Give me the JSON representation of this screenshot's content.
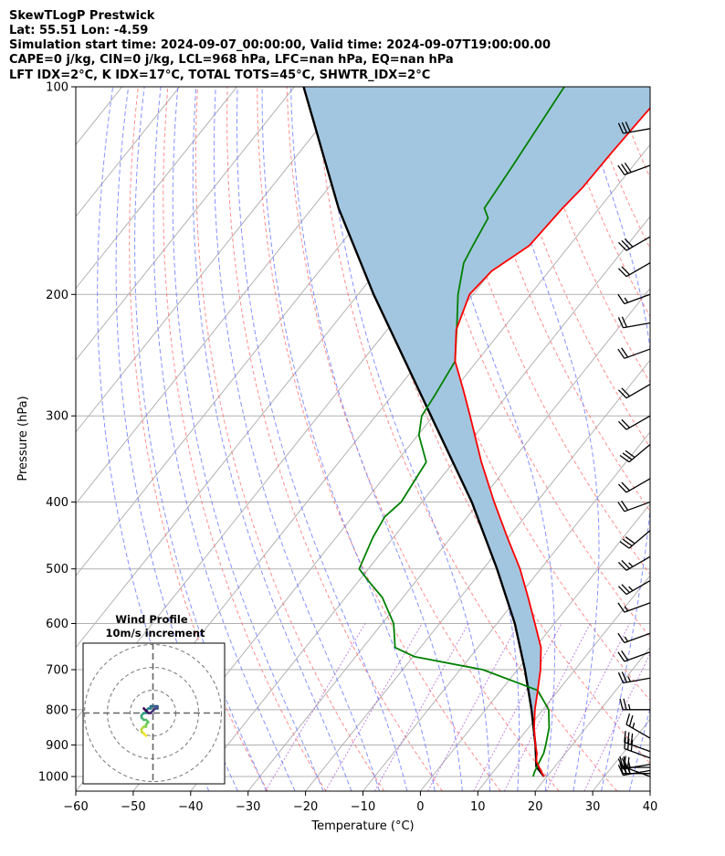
{
  "header": {
    "lines": [
      "SkewTLogP Prestwick",
      "Lat: 55.51   Lon: -4.59",
      "Simulation start time: 2024-09-07_00:00:00, Valid time: 2024-09-07T19:00:00.00",
      "CAPE=0 j/kg, CIN=0 j/kg, LCL=968 hPa, LFC=nan hPa, EQ=nan hPa",
      "LFT IDX=2°C, K IDX=17°C, TOTAL TOTS=45°C, SHWTR_IDX=2°C"
    ]
  },
  "chart_data": [
    {
      "type": "line",
      "subtype": "skew-T log-P",
      "xlabel": "Temperature (°C)",
      "ylabel": "Pressure (hPa)",
      "xlim": [
        -60,
        40
      ],
      "ylim": [
        1050,
        100
      ],
      "y_scale": "log",
      "x_ticks": [
        -60,
        -50,
        -40,
        -30,
        -20,
        -10,
        0,
        10,
        20,
        30,
        40
      ],
      "x_tick_labels": [
        "−60",
        "−50",
        "−40",
        "−30",
        "−20",
        "−10",
        "0",
        "10",
        "20",
        "30",
        "40"
      ],
      "y_ticks": [
        1000,
        900,
        800,
        700,
        600,
        500,
        400,
        300,
        200,
        100
      ],
      "y_tick_labels": [
        "1000",
        "900",
        "800",
        "700",
        "600",
        "500",
        "400",
        "300",
        "200",
        "100"
      ],
      "grid": true,
      "colors": {
        "temperature": "#ff0000",
        "dewpoint": "#008000",
        "parcel": "#000000",
        "cape_fill": "#a3c6e0",
        "dry_adiabats": "#ff6666",
        "moist_adiabats": "#6677ff",
        "mixing_ratio": "#9933cc",
        "isotherms": "#b0b0b0",
        "grid": "#b0b0b0"
      },
      "series": [
        {
          "key": "temperature",
          "pressure": [
            1000,
            985,
            950,
            925,
            900,
            850,
            800,
            750,
            700,
            650,
            600,
            550,
            500,
            450,
            400,
            350,
            300,
            275,
            250,
            225,
            200,
            185,
            170,
            150,
            140,
            125,
            110,
            100
          ],
          "values": [
            19.5,
            18.4,
            16.0,
            15.0,
            13.6,
            11.0,
            8.6,
            6.4,
            4.0,
            1.0,
            -3.4,
            -8.2,
            -13.6,
            -20.2,
            -27.4,
            -35.2,
            -43.6,
            -48.4,
            -53.8,
            -58.0,
            -60.6,
            -60.0,
            -57.0,
            -56.4,
            -55.8,
            -55.6,
            -55.2,
            -54.8
          ]
        },
        {
          "key": "dewpoint",
          "pressure": [
            1000,
            985,
            950,
            925,
            900,
            850,
            800,
            750,
            700,
            670,
            650,
            600,
            550,
            520,
            500,
            450,
            420,
            400,
            350,
            320,
            300,
            280,
            250,
            220,
            200,
            180,
            170,
            155,
            150,
            130,
            100
          ],
          "values": [
            17.6,
            17.2,
            16.6,
            16.2,
            15.4,
            13.6,
            11.0,
            6.4,
            -6.0,
            -19.8,
            -24.4,
            -28.0,
            -33.6,
            -38.4,
            -41.6,
            -43.6,
            -44.4,
            -43.6,
            -44.8,
            -49.8,
            -52.0,
            -52.6,
            -53.8,
            -58.8,
            -62.6,
            -66.0,
            -66.8,
            -68.0,
            -70.0,
            -71.0,
            -73.0
          ]
        },
        {
          "key": "parcel",
          "pressure": [
            1000,
            968,
            900,
            800,
            700,
            600,
            500,
            400,
            300,
            200,
            150,
            100
          ],
          "values": [
            19.5,
            16.8,
            13.6,
            8.0,
            1.3,
            -6.9,
            -17.6,
            -31.3,
            -50.4,
            -77.3,
            -95.4,
            -118.4
          ]
        }
      ],
      "wind_barbs": {
        "pressure": [
          1000,
          990,
          980,
          970,
          960,
          940,
          920,
          880,
          800,
          720,
          660,
          620,
          560,
          520,
          480,
          440,
          400,
          370,
          330,
          300,
          270,
          240,
          220,
          200,
          180,
          165,
          130,
          115
        ],
        "speed_kt": [
          20,
          25,
          30,
          25,
          20,
          30,
          30,
          25,
          25,
          25,
          20,
          15,
          15,
          25,
          25,
          30,
          20,
          20,
          30,
          20,
          20,
          20,
          20,
          15,
          20,
          30,
          30,
          30
        ],
        "direction_deg": [
          290,
          270,
          260,
          270,
          260,
          290,
          290,
          300,
          270,
          260,
          250,
          250,
          250,
          240,
          240,
          230,
          250,
          240,
          230,
          240,
          240,
          250,
          260,
          250,
          240,
          240,
          250,
          260
        ]
      }
    },
    {
      "type": "line",
      "subtype": "hodograph",
      "title": "Wind Profile",
      "subtitle": "10m/s increment",
      "ring_increment_ms": 10,
      "rings": 3,
      "u": [
        -3,
        -4,
        -5,
        -5,
        -4,
        -3,
        -3,
        -2,
        -3,
        -4,
        -5,
        -5,
        -4,
        -3,
        -3,
        -2,
        -1,
        -1,
        0,
        1,
        2,
        2,
        1,
        0,
        -1,
        -2,
        -3,
        -4,
        -3
      ],
      "v": [
        -10,
        -9,
        -8,
        -7,
        -6,
        -6,
        -5,
        -4,
        -3,
        -3,
        -2,
        -1,
        0,
        0,
        1,
        2,
        2,
        3,
        3,
        3,
        3,
        2,
        2,
        1,
        0,
        0,
        1,
        2,
        1
      ]
    }
  ]
}
